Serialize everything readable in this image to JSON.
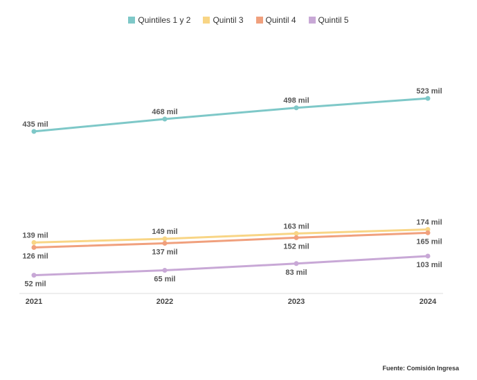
{
  "chart_data": {
    "type": "line",
    "x": [
      "2021",
      "2022",
      "2023",
      "2024"
    ],
    "series": [
      {
        "name": "Quintiles 1 y 2",
        "color": "#7ec8c8",
        "values": [
          435,
          468,
          498,
          523
        ],
        "labels": [
          "435 mil",
          "468 mil",
          "498 mil",
          "523 mil"
        ]
      },
      {
        "name": "Quintil 3",
        "color": "#f8d585",
        "values": [
          139,
          149,
          163,
          174
        ],
        "labels": [
          "139 mil",
          "149 mil",
          "163 mil",
          "174 mil"
        ]
      },
      {
        "name": "Quintil 4",
        "color": "#f0a07d",
        "values": [
          126,
          137,
          152,
          165
        ],
        "labels": [
          "126 mil",
          "137 mil",
          "152 mil",
          "165 mil"
        ]
      },
      {
        "name": "Quintil 5",
        "color": "#c8a8d6",
        "values": [
          52,
          65,
          83,
          103
        ],
        "labels": [
          "52 mil",
          "65 mil",
          "83 mil",
          "103 mil"
        ]
      }
    ],
    "ylim": [
      0,
      600
    ],
    "grid": false,
    "legend_position": "top-center"
  },
  "source": "Fuente: Comisión Ingresa"
}
